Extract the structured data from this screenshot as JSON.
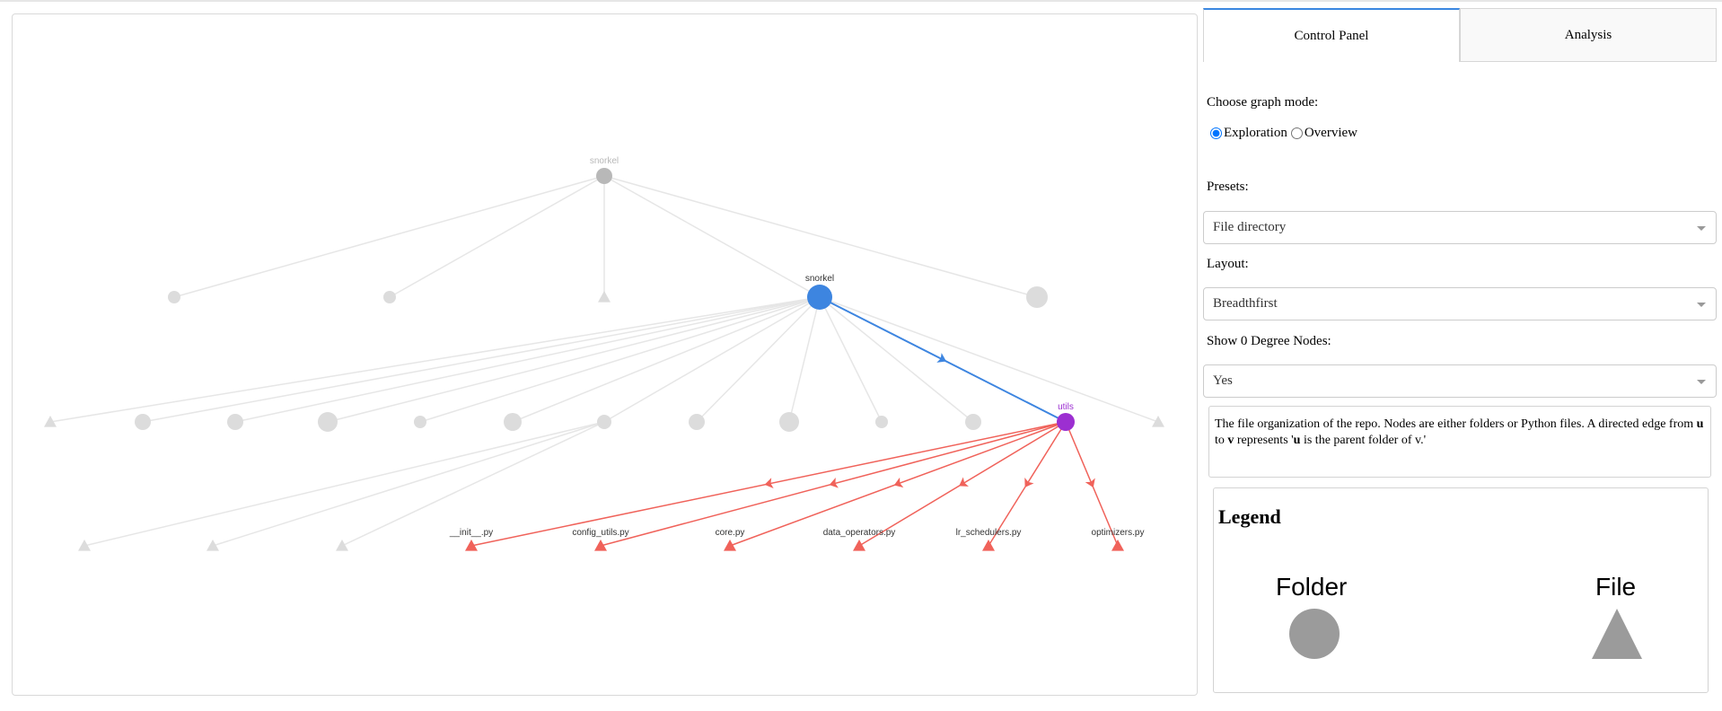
{
  "colors": {
    "faded": "#dcdcdc",
    "faded_edge": "#e6e6e6",
    "root": "#b8b8b8",
    "selected": "#3d85e0",
    "utils": "#9c2fd1",
    "red": "#f0625a",
    "legend_grey": "#9b9b9b"
  },
  "tabs": [
    {
      "label": "Control Panel",
      "active": true
    },
    {
      "label": "Analysis",
      "active": false
    }
  ],
  "controls": {
    "graph_mode_label": "Choose graph mode:",
    "mode_options": [
      "Exploration",
      "Overview"
    ],
    "mode_selected": "Exploration",
    "presets_label": "Presets:",
    "presets_value": "File directory",
    "layout_label": "Layout:",
    "layout_value": "Breadthfirst",
    "zero_degree_label": "Show 0 Degree Nodes:",
    "zero_degree_value": "Yes"
  },
  "description": {
    "part1": "The file organization of the repo. Nodes are either folders or Python files. A directed edge from ",
    "u": "u",
    "part2": " to ",
    "v": "v",
    "part3": " represents '",
    "bold_phrase": "u",
    "part4": " is the parent folder of v.'"
  },
  "legend": {
    "title": "Legend",
    "folder_label": "Folder",
    "file_label": "File"
  },
  "graph": {
    "node_labels": {
      "root": "snorkel",
      "selected": "snorkel",
      "utils": "utils",
      "init": "__init__.py",
      "config_utils": "config_utils.py",
      "core": "core.py",
      "data_operators": "data_operators.py",
      "lr_schedulers": "lr_schedulers.py",
      "optimizers": "optimizers.py"
    }
  }
}
